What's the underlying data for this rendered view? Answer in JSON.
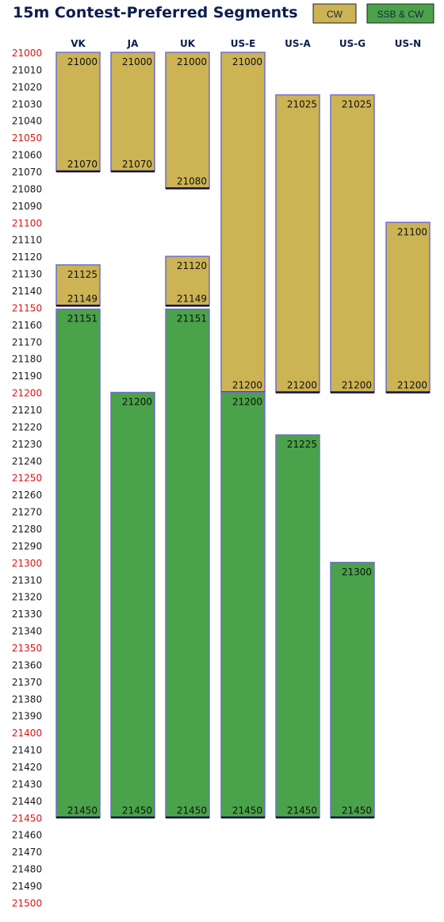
{
  "chart_data": {
    "type": "bar",
    "orientation": "vertical-range",
    "title": "15m Contest-Preferred Segments",
    "legend": [
      {
        "key": "cw",
        "label": "CW",
        "color": "#ccb354"
      },
      {
        "key": "ssb_cw",
        "label": "SSB & CW",
        "color": "#4aa24a"
      }
    ],
    "ylim": [
      21000,
      21500
    ],
    "y_ticks": [
      21000,
      21010,
      21020,
      21030,
      21040,
      21050,
      21060,
      21070,
      21080,
      21090,
      21100,
      21110,
      21120,
      21130,
      21140,
      21150,
      21160,
      21170,
      21180,
      21190,
      21200,
      21210,
      21220,
      21230,
      21240,
      21250,
      21260,
      21270,
      21280,
      21290,
      21300,
      21310,
      21320,
      21330,
      21340,
      21350,
      21360,
      21370,
      21380,
      21390,
      21400,
      21410,
      21420,
      21430,
      21440,
      21450,
      21460,
      21470,
      21480,
      21490,
      21500
    ],
    "tick_colors": {
      "normal": "#1a1a1a",
      "highlight": "#e01010"
    },
    "highlight_every": 50,
    "categories": [
      "VK",
      "JA",
      "UK",
      "US-E",
      "US-A",
      "US-G",
      "US-N"
    ],
    "segments": [
      {
        "category": "VK",
        "mode": "cw",
        "start": 21000,
        "end": 21070,
        "start_label": "21000",
        "end_label": "21070"
      },
      {
        "category": "VK",
        "mode": "cw",
        "start": 21125,
        "end": 21149,
        "start_label": "21125",
        "end_label": "21149"
      },
      {
        "category": "VK",
        "mode": "ssb_cw",
        "start": 21151,
        "end": 21450,
        "start_label": "21151",
        "end_label": "21450"
      },
      {
        "category": "JA",
        "mode": "cw",
        "start": 21000,
        "end": 21070,
        "start_label": "21000",
        "end_label": "21070"
      },
      {
        "category": "JA",
        "mode": "ssb_cw",
        "start": 21200,
        "end": 21450,
        "start_label": "21200",
        "end_label": "21450"
      },
      {
        "category": "UK",
        "mode": "cw",
        "start": 21000,
        "end": 21080,
        "start_label": "21000",
        "end_label": "21080"
      },
      {
        "category": "UK",
        "mode": "cw",
        "start": 21120,
        "end": 21149,
        "start_label": "21120",
        "end_label": "21149"
      },
      {
        "category": "UK",
        "mode": "ssb_cw",
        "start": 21151,
        "end": 21450,
        "start_label": "21151",
        "end_label": "21450"
      },
      {
        "category": "US-E",
        "mode": "cw",
        "start": 21000,
        "end": 21200,
        "start_label": "21000",
        "end_label": "21200"
      },
      {
        "category": "US-E",
        "mode": "ssb_cw",
        "start": 21200,
        "end": 21450,
        "start_label": "21200",
        "end_label": "21450"
      },
      {
        "category": "US-A",
        "mode": "cw",
        "start": 21025,
        "end": 21200,
        "start_label": "21025",
        "end_label": "21200"
      },
      {
        "category": "US-A",
        "mode": "ssb_cw",
        "start": 21225,
        "end": 21450,
        "start_label": "21225",
        "end_label": "21450"
      },
      {
        "category": "US-G",
        "mode": "cw",
        "start": 21025,
        "end": 21200,
        "start_label": "21025",
        "end_label": "21200"
      },
      {
        "category": "US-G",
        "mode": "ssb_cw",
        "start": 21300,
        "end": 21450,
        "start_label": "21300",
        "end_label": "21450"
      },
      {
        "category": "US-N",
        "mode": "cw",
        "start": 21100,
        "end": 21200,
        "start_label": "21100",
        "end_label": "21200"
      }
    ],
    "grid": false,
    "legend_placement": "top-right"
  }
}
